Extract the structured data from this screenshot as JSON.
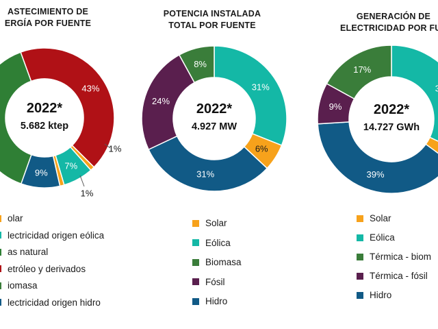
{
  "colors": {
    "solar": "#f7a21b",
    "eolica": "#14b8a6",
    "biomasa": "#3a7d3a",
    "fosil": "#5a1f4e",
    "hidro": "#115a86",
    "gas": "#2f7f35",
    "petroleo": "#b01116",
    "white": "#ffffff"
  },
  "chart_data": [
    {
      "type": "pie",
      "variant": "donut",
      "title_lines": [
        "ABASTECIMIENTO DE",
        "ENERGÍA POR FUENTE"
      ],
      "title_visible_lines": [
        "ASTECIMIENTO DE",
        "ERGÍA POR FUENTE"
      ],
      "center_year": "2022*",
      "center_value": "5.682 ktep",
      "slices": [
        {
          "name": "Petróleo y derivados",
          "value": 43,
          "label": "43%",
          "color": "#b01116"
        },
        {
          "name": "Solar",
          "value": 1,
          "label": "1%",
          "color": "#f7a21b"
        },
        {
          "name": "Electricidad origen eólica",
          "value": 7,
          "label": "7%",
          "color": "#14b8a6"
        },
        {
          "name": "Solar2",
          "value": 1,
          "label": "1%",
          "color": "#f7a21b"
        },
        {
          "name": "Electricidad origen hidro",
          "value": 9,
          "label": "9%",
          "color": "#115a86"
        },
        {
          "name": "Gas natural / Biomasa",
          "value": 39,
          "label": "",
          "color": "#2f7f35"
        }
      ],
      "legend": [
        {
          "text": "olar",
          "color": "#f7a21b"
        },
        {
          "text": "lectricidad origen eólica",
          "color": "#14b8a6"
        },
        {
          "text": "as natural",
          "color": "#2f7f35"
        },
        {
          "text": "etróleo y derivados",
          "color": "#b01116"
        },
        {
          "text": "iomasa",
          "color": "#3a7d3a"
        },
        {
          "text": "lectricidad origen hidro",
          "color": "#115a86"
        }
      ]
    },
    {
      "type": "pie",
      "variant": "donut",
      "title_lines": [
        "POTENCIA INSTALADA",
        "TOTAL POR FUENTE"
      ],
      "center_year": "2022*",
      "center_value": "4.927 MW",
      "slices": [
        {
          "name": "Eólica",
          "value": 31,
          "label": "31%",
          "color": "#14b8a6"
        },
        {
          "name": "Solar",
          "value": 6,
          "label": "6%",
          "color": "#f7a21b"
        },
        {
          "name": "Hidro",
          "value": 31,
          "label": "31%",
          "color": "#115a86"
        },
        {
          "name": "Fósil",
          "value": 24,
          "label": "24%",
          "color": "#5a1f4e"
        },
        {
          "name": "Biomasa",
          "value": 8,
          "label": "8%",
          "color": "#3a7d3a"
        }
      ],
      "legend": [
        {
          "text": "Solar",
          "color": "#f7a21b"
        },
        {
          "text": "Eólica",
          "color": "#14b8a6"
        },
        {
          "text": "Biomasa",
          "color": "#3a7d3a"
        },
        {
          "text": "Fósil",
          "color": "#5a1f4e"
        },
        {
          "text": "Hidro",
          "color": "#115a86"
        }
      ]
    },
    {
      "type": "pie",
      "variant": "donut",
      "title_lines": [
        "GENERACIÓN DE",
        "ELECTRICIDAD POR FUENTE"
      ],
      "title_visible_lines": [
        "GENERACIÓN DE",
        "ELECTRICIDAD POR FUE"
      ],
      "center_year": "2022*",
      "center_value": "14.727 GWh",
      "slices": [
        {
          "name": "Eólica",
          "value": 32,
          "label": "32",
          "color": "#14b8a6"
        },
        {
          "name": "Solar",
          "value": 3,
          "label": "",
          "color": "#f7a21b"
        },
        {
          "name": "Hidro",
          "value": 39,
          "label": "39%",
          "color": "#115a86"
        },
        {
          "name": "Térmica - fósil",
          "value": 9,
          "label": "9%",
          "color": "#5a1f4e"
        },
        {
          "name": "Térmica - biomasa",
          "value": 17,
          "label": "17%",
          "color": "#3a7d3a"
        }
      ],
      "legend": [
        {
          "text": "Solar",
          "color": "#f7a21b"
        },
        {
          "text": "Eólica",
          "color": "#14b8a6"
        },
        {
          "text": "Térmica - biom",
          "color": "#3a7d3a"
        },
        {
          "text": "Térmica - fósil",
          "color": "#5a1f4e"
        },
        {
          "text": "Hidro",
          "color": "#115a86"
        }
      ]
    }
  ]
}
